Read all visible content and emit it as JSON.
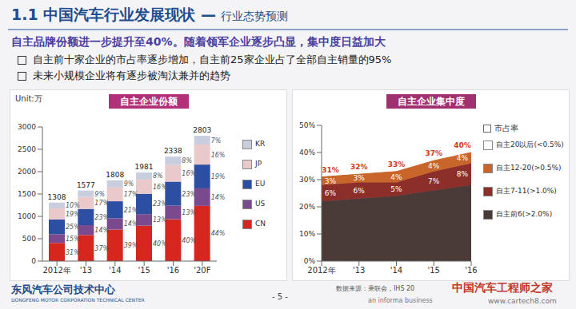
{
  "title": "1.1 中国汽车行业发展现状 —",
  "subtitle": "行业态势预测",
  "headline": "自主品牌份额进一步提升至40%。随着领军企业逐步凸显，集中度日益加大",
  "bullets": [
    "自主前十家企业的市占率逐步增加，自主前25家企业占了全部自主销量的95%",
    "未来小规模企业将有逐步被淘汰兼并的趋势"
  ],
  "footer": {
    "org": "东风汽车公司技术中心",
    "org_en": "DONGFENG MOTOR CORPORATION TECHNICAL CENTER",
    "source": "数据来源：乘联会，IHS 20",
    "page": "- 5 -",
    "watermark": "中国汽车工程师之家",
    "watermark_url": "www.cartech8.com",
    "watermark_note": "an informa business"
  },
  "chart_data": [
    {
      "type": "bar",
      "title": "自主企业份额",
      "unit_label": "Unit:万",
      "stacked": true,
      "legend": "right",
      "grid": false,
      "categories": [
        "2012年",
        "'13",
        "'14",
        "'15",
        "'16",
        "'20F"
      ],
      "series": [
        {
          "name": "CN",
          "color": "#d7261e",
          "values": [
            406,
            583,
            705,
            792,
            935,
            1234
          ],
          "share_labels": [
            "31%",
            "37%",
            "39%",
            "40%",
            "40%",
            "44%"
          ]
        },
        {
          "name": "US",
          "color": "#7b4a8e",
          "values": [
            196,
            221,
            253,
            258,
            304,
            392
          ],
          "share_labels": [
            "15%",
            "14%",
            "14%",
            "13%",
            "13%",
            "14%"
          ]
        },
        {
          "name": "EU",
          "color": "#2d4fa3",
          "values": [
            327,
            363,
            380,
            456,
            538,
            533
          ],
          "share_labels": [
            "25%",
            "23%",
            "21%",
            "23%",
            "23%",
            "19%"
          ]
        },
        {
          "name": "JP",
          "color": "#e9c9c9",
          "values": [
            248,
            268,
            307,
            317,
            374,
            448
          ],
          "share_labels": [
            "19%",
            "17%",
            "17%",
            "16%",
            "16%",
            "16%"
          ]
        },
        {
          "name": "KR",
          "color": "#c9cede",
          "values": [
            131,
            142,
            163,
            158,
            187,
            196
          ],
          "share_labels": [
            "10%",
            "9%",
            "9%",
            "8%",
            "8%",
            "7%"
          ]
        }
      ],
      "totals": [
        1308,
        1577,
        1808,
        1981,
        2338,
        2803
      ],
      "ylim": [
        0,
        3000
      ],
      "yticks": [
        0,
        500,
        1000,
        1500,
        2000,
        2500,
        3000
      ]
    },
    {
      "type": "area",
      "title": "自主企业集中度",
      "legend_title": "市占率",
      "stacked": true,
      "legend": "right",
      "grid": false,
      "categories": [
        "2012年",
        "'13",
        "'14",
        "'15",
        "'16"
      ],
      "series": [
        {
          "name": "自主前6(>2.0%)",
          "color": "#4a3b38",
          "values": [
            22,
            23,
            24,
            26,
            28
          ]
        },
        {
          "name": "自主7-11(>1.0%)",
          "color": "#8c2f2a",
          "values": [
            6,
            6,
            5,
            7,
            8
          ],
          "value_labels": [
            "6%",
            "6%",
            "5%",
            "7%",
            "8%"
          ]
        },
        {
          "name": "自主12-20(>0.5%)",
          "color": "#c8652a",
          "values": [
            3,
            3,
            4,
            4,
            4
          ],
          "value_labels": [
            "3%",
            "3%",
            "4%",
            "4%",
            "4%"
          ]
        },
        {
          "name": "自主20以后(<0.5%)",
          "color": "#ffffff",
          "values": [
            null,
            null,
            null,
            null,
            null
          ]
        }
      ],
      "totals": [
        31,
        32,
        33,
        37,
        40
      ],
      "total_labels": [
        "31%",
        "32%",
        "33%",
        "37%",
        "40%"
      ],
      "ylim": [
        0,
        50
      ],
      "yticks": [
        {
          "value": 0,
          "label": "0%"
        },
        {
          "value": 10,
          "label": "10%"
        },
        {
          "value": 20,
          "label": "20%"
        },
        {
          "value": 30,
          "label": "30%"
        },
        {
          "value": 40,
          "label": "40%"
        },
        {
          "value": 50,
          "label": "50%"
        }
      ]
    }
  ]
}
